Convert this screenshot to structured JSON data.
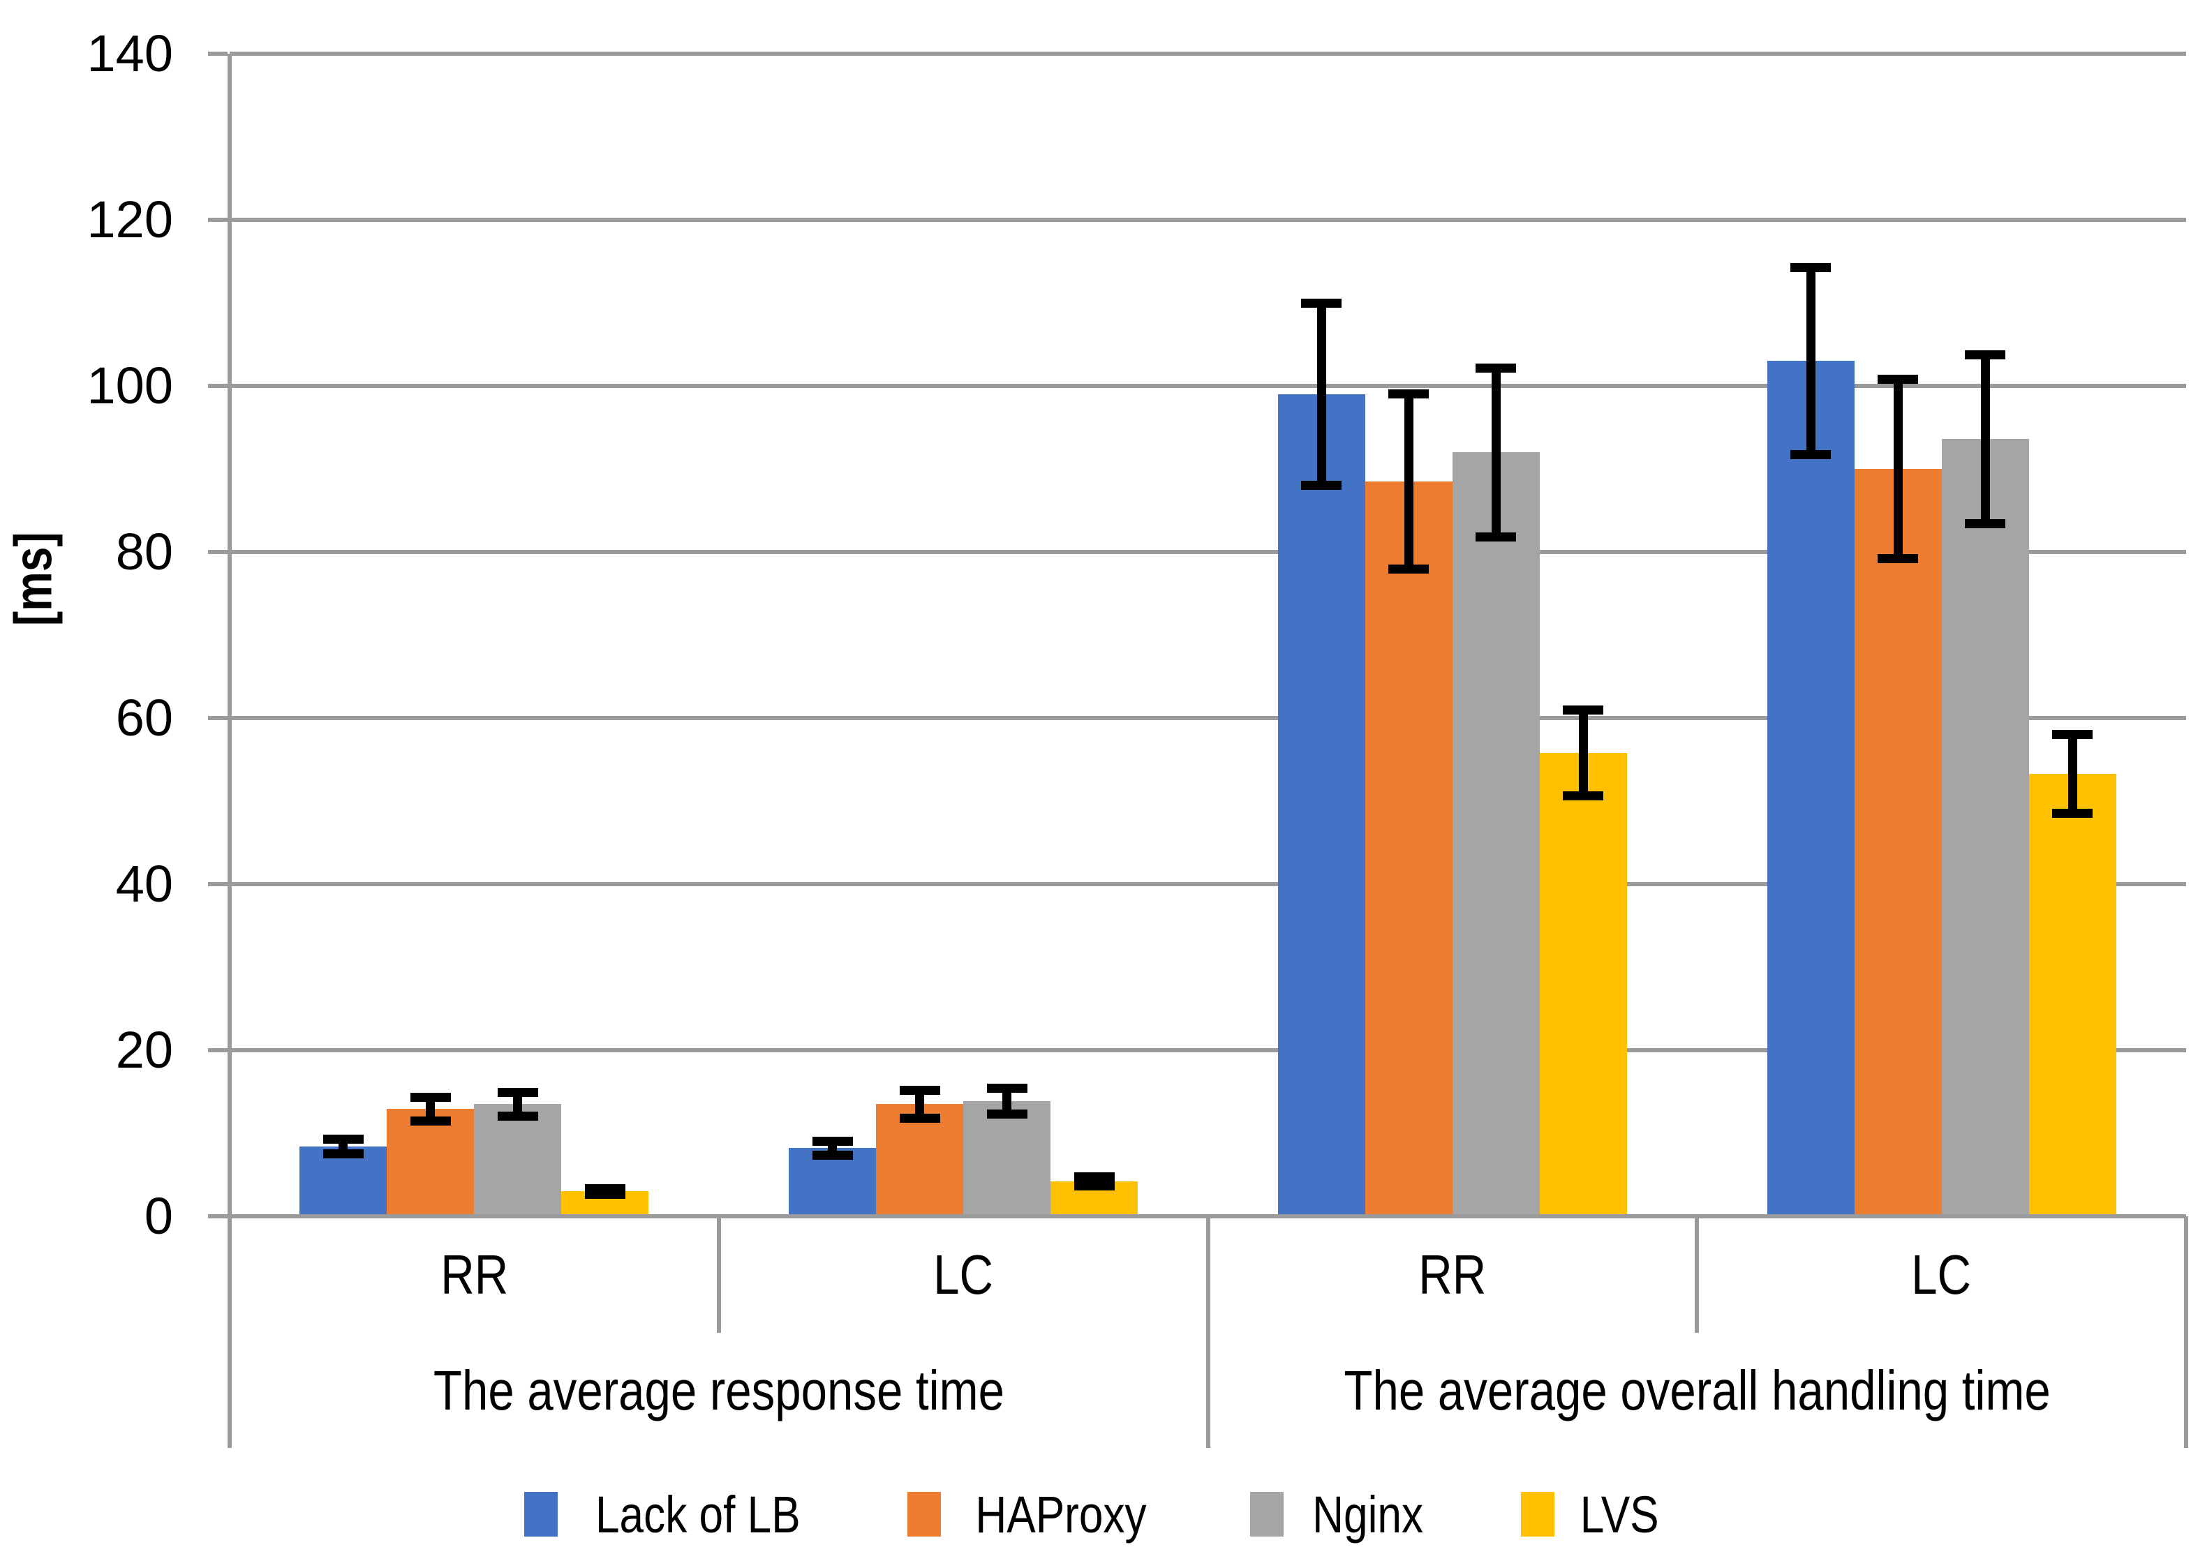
{
  "chart_data": {
    "type": "bar",
    "title": "",
    "ylabel": "[ms]",
    "ylim": [
      0,
      140
    ],
    "y_ticks": [
      0,
      20,
      40,
      60,
      80,
      100,
      120,
      140
    ],
    "grid": true,
    "legend_position": "bottom",
    "group_labels": [
      "The average response time",
      "The average overall handling time"
    ],
    "sub_categories": [
      "RR",
      "LC",
      "RR",
      "LC"
    ],
    "series": [
      {
        "name": "Lack of LB",
        "color": "#4472C4",
        "values": [
          8.4,
          8.2,
          99.0,
          103.0
        ],
        "errors": [
          0.9,
          0.9,
          11.0,
          11.3
        ]
      },
      {
        "name": "HAProxy",
        "color": "#ED7D31",
        "values": [
          12.9,
          13.5,
          88.5,
          90.0
        ],
        "errors": [
          1.5,
          1.7,
          10.6,
          10.8
        ]
      },
      {
        "name": "Nginx",
        "color": "#A5A5A5",
        "values": [
          13.5,
          13.9,
          92.0,
          93.6
        ],
        "errors": [
          1.5,
          1.6,
          10.2,
          10.2
        ]
      },
      {
        "name": "LVS",
        "color": "#FFC000",
        "values": [
          3.0,
          4.2,
          55.8,
          53.3
        ],
        "errors": [
          0.4,
          0.55,
          5.2,
          4.8
        ]
      }
    ],
    "error_bar_color": "#000000",
    "axis_color": "#9B9B9B",
    "text_color": "#000000",
    "background_color": "#FFFFFF"
  }
}
